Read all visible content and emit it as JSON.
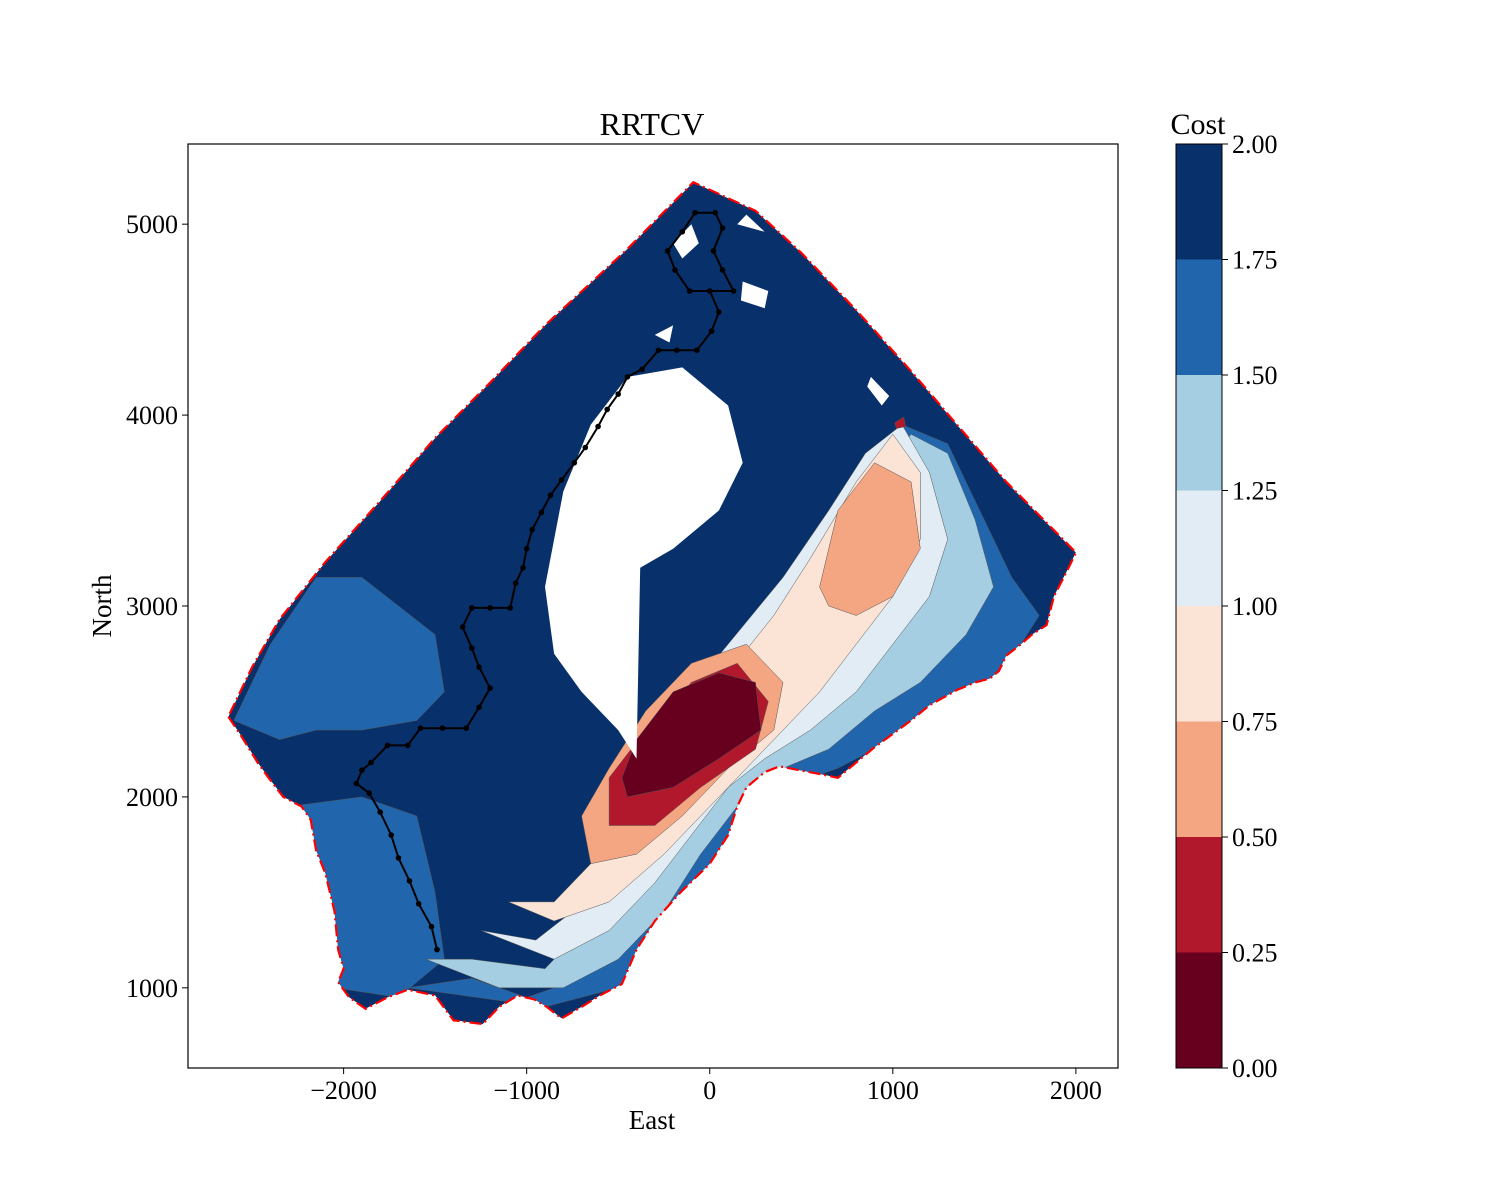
{
  "chart_data": {
    "type": "contour",
    "title": "RRTCV",
    "xlabel": "East",
    "ylabel": "North",
    "xlim": [
      -2850,
      2230
    ],
    "ylim": [
      580,
      5420
    ],
    "xticks": [
      -2000,
      -1000,
      0,
      1000,
      2000
    ],
    "xtick_labels": [
      "−2000",
      "−1000",
      "0",
      "1000",
      "2000"
    ],
    "yticks": [
      1000,
      2000,
      3000,
      4000,
      5000
    ],
    "ytick_labels": [
      "1000",
      "2000",
      "3000",
      "4000",
      "5000"
    ],
    "grid": false,
    "colorbar": {
      "label": "Cost",
      "levels": [
        0.0,
        0.25,
        0.5,
        0.75,
        1.0,
        1.25,
        1.5,
        1.75,
        2.0
      ],
      "tick_labels": [
        "0.00",
        "0.25",
        "0.50",
        "0.75",
        "1.00",
        "1.25",
        "1.50",
        "1.75",
        "2.00"
      ],
      "colors": [
        "#67001f",
        "#b2182b",
        "#f4a582",
        "#fbe3d6",
        "#e1ecf4",
        "#a6cee3",
        "#2166ac",
        "#08306b"
      ]
    },
    "region_boundary": {
      "style": "dash-dot",
      "color": "#ff0000",
      "points": [
        [
          -2630,
          2420
        ],
        [
          -2560,
          2320
        ],
        [
          -2470,
          2180
        ],
        [
          -2410,
          2100
        ],
        [
          -2330,
          2000
        ],
        [
          -2230,
          1950
        ],
        [
          -2180,
          1880
        ],
        [
          -2150,
          1720
        ],
        [
          -2100,
          1600
        ],
        [
          -2050,
          1400
        ],
        [
          -2030,
          1200
        ],
        [
          -2000,
          1100
        ],
        [
          -2030,
          1030
        ],
        [
          -1970,
          950
        ],
        [
          -1880,
          890
        ],
        [
          -1760,
          950
        ],
        [
          -1650,
          990
        ],
        [
          -1500,
          960
        ],
        [
          -1400,
          830
        ],
        [
          -1240,
          810
        ],
        [
          -1150,
          900
        ],
        [
          -1050,
          960
        ],
        [
          -960,
          940
        ],
        [
          -890,
          900
        ],
        [
          -810,
          840
        ],
        [
          -700,
          900
        ],
        [
          -600,
          960
        ],
        [
          -480,
          1020
        ],
        [
          -400,
          1200
        ],
        [
          -300,
          1350
        ],
        [
          -160,
          1500
        ],
        [
          0,
          1650
        ],
        [
          100,
          1800
        ],
        [
          150,
          1950
        ],
        [
          200,
          2050
        ],
        [
          300,
          2130
        ],
        [
          380,
          2160
        ],
        [
          600,
          2120
        ],
        [
          700,
          2100
        ],
        [
          800,
          2180
        ],
        [
          900,
          2260
        ],
        [
          1000,
          2330
        ],
        [
          1100,
          2400
        ],
        [
          1200,
          2480
        ],
        [
          1350,
          2560
        ],
        [
          1450,
          2600
        ],
        [
          1530,
          2620
        ],
        [
          1580,
          2660
        ],
        [
          1620,
          2740
        ],
        [
          1700,
          2800
        ],
        [
          1760,
          2850
        ],
        [
          1840,
          2900
        ],
        [
          1880,
          3050
        ],
        [
          1960,
          3200
        ],
        [
          2000,
          3280
        ],
        [
          1620,
          3650
        ],
        [
          1350,
          3950
        ],
        [
          1100,
          4230
        ],
        [
          800,
          4550
        ],
        [
          500,
          4850
        ],
        [
          250,
          5070
        ],
        [
          -90,
          5220
        ],
        [
          -450,
          4870
        ],
        [
          -900,
          4470
        ],
        [
          -1200,
          4170
        ],
        [
          -1500,
          3880
        ],
        [
          -1800,
          3550
        ],
        [
          -2100,
          3230
        ],
        [
          -2350,
          2930
        ],
        [
          -2500,
          2680
        ],
        [
          -2630,
          2420
        ]
      ]
    },
    "path": {
      "color": "#000000",
      "points": [
        [
          -1490,
          1200
        ],
        [
          -1520,
          1320
        ],
        [
          -1590,
          1440
        ],
        [
          -1640,
          1560
        ],
        [
          -1700,
          1680
        ],
        [
          -1740,
          1800
        ],
        [
          -1800,
          1920
        ],
        [
          -1860,
          2020
        ],
        [
          -1930,
          2070
        ],
        [
          -1900,
          2140
        ],
        [
          -1850,
          2180
        ],
        [
          -1760,
          2270
        ],
        [
          -1650,
          2270
        ],
        [
          -1580,
          2360
        ],
        [
          -1460,
          2360
        ],
        [
          -1330,
          2360
        ],
        [
          -1260,
          2470
        ],
        [
          -1200,
          2570
        ],
        [
          -1260,
          2680
        ],
        [
          -1300,
          2780
        ],
        [
          -1350,
          2890
        ],
        [
          -1300,
          2990
        ],
        [
          -1200,
          2990
        ],
        [
          -1090,
          2990
        ],
        [
          -1060,
          3120
        ],
        [
          -1020,
          3200
        ],
        [
          -1000,
          3300
        ],
        [
          -970,
          3400
        ],
        [
          -920,
          3490
        ],
        [
          -870,
          3580
        ],
        [
          -810,
          3660
        ],
        [
          -740,
          3750
        ],
        [
          -680,
          3830
        ],
        [
          -610,
          3940
        ],
        [
          -560,
          4030
        ],
        [
          -500,
          4110
        ],
        [
          -450,
          4200
        ],
        [
          -370,
          4240
        ],
        [
          -280,
          4340
        ],
        [
          -180,
          4340
        ],
        [
          -70,
          4340
        ],
        [
          10,
          4440
        ],
        [
          50,
          4540
        ],
        [
          0,
          4650
        ],
        [
          -110,
          4650
        ],
        [
          -190,
          4760
        ],
        [
          -230,
          4860
        ],
        [
          -150,
          4960
        ],
        [
          -80,
          5060
        ],
        [
          30,
          5060
        ],
        [
          70,
          4980
        ],
        [
          20,
          4860
        ],
        [
          70,
          4760
        ],
        [
          130,
          4650
        ],
        [
          0,
          4650
        ]
      ]
    }
  }
}
